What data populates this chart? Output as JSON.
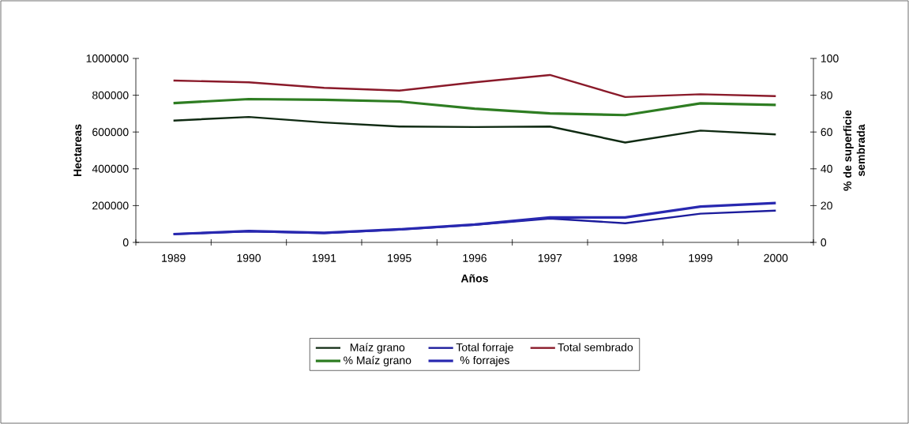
{
  "chart_data": {
    "type": "line",
    "categories": [
      "1989",
      "1990",
      "1991",
      "1995",
      "1996",
      "1997",
      "1998",
      "1999",
      "2000"
    ],
    "xlabel": "Años",
    "ylabel": "Hectareas",
    "y2label": "% de superficie sembrada",
    "ylim": [
      0,
      1000000
    ],
    "yticks": [
      0,
      200000,
      400000,
      600000,
      800000,
      1000000
    ],
    "y2lim": [
      0,
      100
    ],
    "y2ticks": [
      0,
      20,
      40,
      60,
      80,
      100
    ],
    "grid": false,
    "legend": "bottom",
    "marker": "none",
    "line_style": "solid",
    "series": [
      {
        "name": "Maíz grano",
        "color": "#0f2a12",
        "values": [
          662000,
          682000,
          652000,
          630000,
          627000,
          630000,
          543000,
          608000,
          587000
        ]
      },
      {
        "name": "Total forraje",
        "color": "#1c1c9c",
        "values": [
          45000,
          60000,
          50000,
          70000,
          95000,
          130000,
          104000,
          156000,
          173000
        ]
      },
      {
        "name": "Total sembrado",
        "color": "#8a1a2a",
        "values": [
          880000,
          870000,
          840000,
          825000,
          870000,
          910000,
          790000,
          805000,
          795000
        ]
      },
      {
        "name": "% Maíz grano",
        "color": "#2e7d22",
        "axis": "y2",
        "values": [
          75.7,
          77.9,
          77.5,
          76.6,
          72.7,
          70.1,
          69.2,
          75.6,
          74.7
        ]
      },
      {
        "name": "% forrajes",
        "color": "#2828b0",
        "axis": "y2",
        "values": [
          4.5,
          6.2,
          5.2,
          7.1,
          9.7,
          13.6,
          13.6,
          19.5,
          21.4
        ]
      }
    ]
  }
}
